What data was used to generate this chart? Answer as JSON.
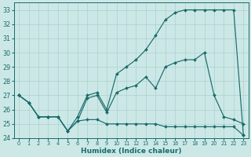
{
  "xlabel": "Humidex (Indice chaleur)",
  "bg_color": "#cce8e6",
  "grid_color": "#aad0ce",
  "line_color": "#1a6b6b",
  "x_values": [
    0,
    1,
    2,
    3,
    4,
    5,
    6,
    7,
    8,
    9,
    10,
    11,
    12,
    13,
    14,
    15,
    16,
    17,
    18,
    19,
    20,
    21,
    22,
    23
  ],
  "line1": [
    27.0,
    26.5,
    25.5,
    25.5,
    25.5,
    24.5,
    25.2,
    25.3,
    25.3,
    25.0,
    25.0,
    25.0,
    25.0,
    25.0,
    25.0,
    24.8,
    24.8,
    24.8,
    24.8,
    24.8,
    24.8,
    24.8,
    24.8,
    24.2
  ],
  "line2": [
    27.0,
    26.5,
    25.5,
    25.5,
    25.5,
    24.5,
    25.2,
    26.8,
    27.0,
    25.8,
    27.2,
    27.5,
    27.7,
    28.3,
    27.5,
    29.0,
    29.3,
    29.5,
    29.5,
    30.0,
    27.0,
    25.5,
    25.3,
    25.0
  ],
  "line3": [
    27.0,
    26.5,
    25.5,
    25.5,
    25.5,
    24.5,
    25.5,
    27.0,
    27.2,
    26.0,
    28.5,
    29.0,
    29.5,
    30.2,
    31.2,
    32.3,
    32.8,
    33.0,
    33.0,
    33.0,
    33.0,
    33.0,
    33.0,
    24.2
  ],
  "ylim": [
    24,
    33.5
  ],
  "yticks": [
    24,
    25,
    26,
    27,
    28,
    29,
    30,
    31,
    32,
    33
  ],
  "xticks": [
    0,
    1,
    2,
    3,
    4,
    5,
    6,
    7,
    8,
    9,
    10,
    11,
    12,
    13,
    14,
    15,
    16,
    17,
    18,
    19,
    20,
    21,
    22,
    23
  ]
}
